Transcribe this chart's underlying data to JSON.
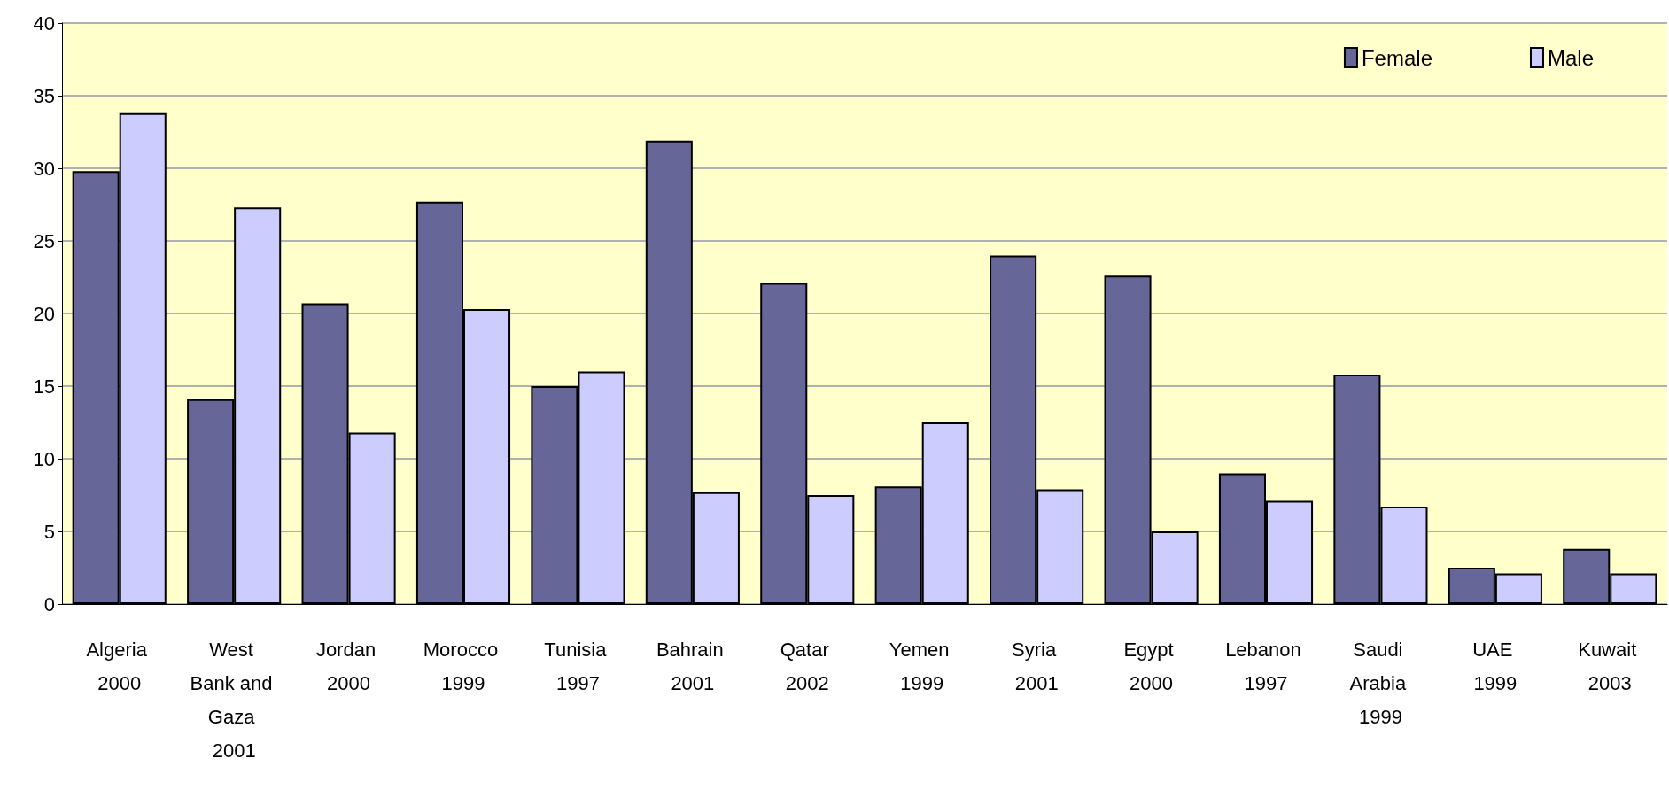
{
  "chart_data": {
    "type": "bar",
    "categories": [
      "Algeria 2000",
      "West Bank and Gaza 2001",
      "Jordan 2000",
      "Morocco 1999",
      "Tunisia 1997",
      "Bahrain 2001",
      "Qatar 2002",
      "Yemen 1999",
      "Syria 2001",
      "Egypt 2000",
      "Lebanon 1997",
      "Saudi Arabia 1999",
      "UAE 1999",
      "Kuwait 2003"
    ],
    "series": [
      {
        "name": "Female",
        "color": "#666699",
        "values": [
          29.8,
          14.1,
          20.7,
          27.7,
          15.0,
          31.9,
          22.1,
          8.1,
          24.0,
          22.6,
          9.0,
          15.8,
          2.5,
          3.8
        ]
      },
      {
        "name": "Male",
        "color": "#ccccff",
        "values": [
          33.8,
          27.3,
          11.8,
          20.3,
          16.0,
          7.7,
          7.5,
          12.5,
          7.9,
          5.0,
          7.1,
          6.7,
          2.1,
          2.1
        ]
      }
    ],
    "ylim": [
      0,
      40
    ],
    "yticks": [
      0,
      5,
      10,
      15,
      20,
      25,
      30,
      35,
      40
    ],
    "grid": "y",
    "legend": "top right"
  }
}
